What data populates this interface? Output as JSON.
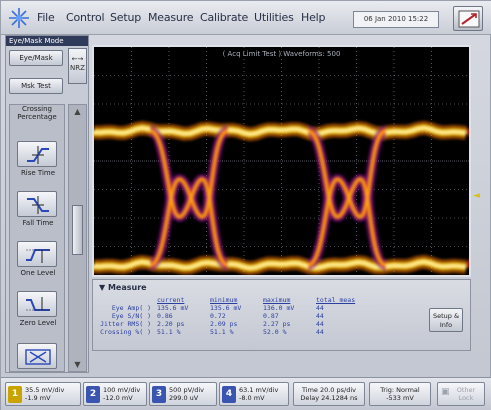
{
  "menubar": {
    "logo_icon": "starburst-logo-icon",
    "items": [
      "File",
      "Control",
      "Setup",
      "Measure",
      "Calibrate",
      "Utilities",
      "Help"
    ],
    "datetime": "06 Jan 2010  15:22",
    "resize_icon": "window-resize-icon"
  },
  "left_panel": {
    "mode_title": "Eye/Mask Mode",
    "eye_mask_button": "Eye/Mask",
    "mask_test_button": "Msk Test",
    "nrz_button": "NRZ",
    "tool_header": "Crossing Percentage",
    "tools": [
      {
        "label": "Rise Time",
        "icon": "rise-time-icon"
      },
      {
        "label": "Fall Time",
        "icon": "fall-time-icon"
      },
      {
        "label": "One Level",
        "icon": "one-level-icon"
      },
      {
        "label": "Zero Level",
        "icon": "zero-level-icon"
      },
      {
        "label": "",
        "icon": "eye-width-icon"
      }
    ]
  },
  "waveform": {
    "title": "( Acq Limit Test )  Waveforms: 500",
    "marker_color": "#d8c016"
  },
  "measure": {
    "tab_label": "Measure",
    "columns": [
      "current",
      "minimum",
      "maximum",
      "total meas"
    ],
    "rows": [
      {
        "name": "Eye Amp( )",
        "current": "135.6 mV",
        "minimum": "135.6 mV",
        "maximum": "136.0 mV",
        "total": "44"
      },
      {
        "name": "Eye S/N( )",
        "current": "0.86",
        "minimum": "0.72",
        "maximum": "0.87",
        "total": "44"
      },
      {
        "name": "Jitter RMS( )",
        "current": "2.20 ps",
        "minimum": "2.09 ps",
        "maximum": "2.27 ps",
        "total": "44"
      },
      {
        "name": "Crossing %( )",
        "current": "51.1 %",
        "minimum": "51.1 %",
        "maximum": "52.0 %",
        "total": "44"
      }
    ],
    "setup_button": "Setup & Info"
  },
  "status_bar": {
    "channels": [
      {
        "num": "1",
        "color": "#c9a400",
        "line1": "35.5 mV/div",
        "line2": "-1.9 mV"
      },
      {
        "num": "2",
        "color": "#3a54b0",
        "line1": "100 mV/div",
        "line2": "-12.0 mV"
      },
      {
        "num": "3",
        "color": "#3a54b0",
        "line1": "500 pV/div",
        "line2": "299.0 uV"
      },
      {
        "num": "4",
        "color": "#3a54b0",
        "line1": "63.1 mV/div",
        "line2": "-8.0 mV"
      }
    ],
    "time": {
      "line1": "Time 20.0 ps/div",
      "line2": "Delay 24.1284 ns"
    },
    "trigger": {
      "line1": "Trig: Normal",
      "line2": "-533 mV"
    },
    "other": {
      "line1": "Other",
      "line2": "Lock"
    }
  }
}
